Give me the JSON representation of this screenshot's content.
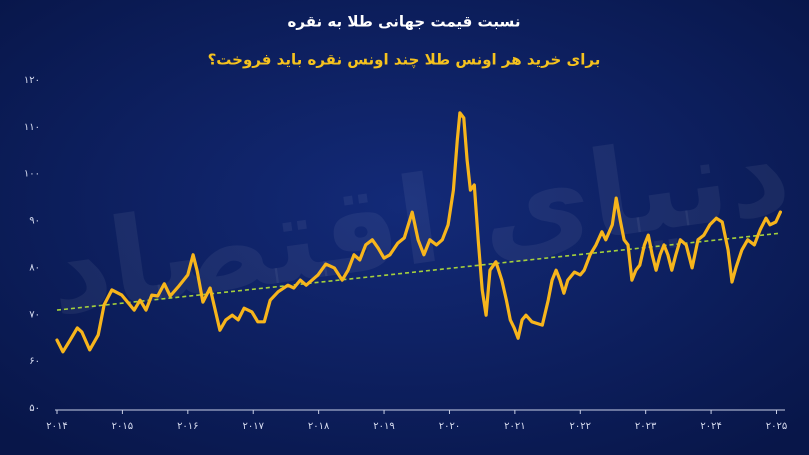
{
  "chart_data": {
    "type": "line",
    "title": "نسبت قیمت جهانی طلا به نقره",
    "subtitle": "برای خرید هر اونس طلا چند اونس نقره باید فروخت؟",
    "watermark": "دنیای اقتصاد",
    "color": "#f7b51c",
    "x": [
      2014.0,
      2014.09,
      2014.2,
      2014.31,
      2014.38,
      2014.5,
      2014.63,
      2014.72,
      2014.84,
      2014.99,
      2015.18,
      2015.27,
      2015.36,
      2015.45,
      2015.54,
      2015.64,
      2015.73,
      2015.85,
      2016.0,
      2016.08,
      2016.14,
      2016.23,
      2016.34,
      2016.4,
      2016.49,
      2016.58,
      2016.68,
      2016.77,
      2016.86,
      2016.98,
      2017.07,
      2017.17,
      2017.26,
      2017.38,
      2017.53,
      2017.62,
      2017.72,
      2017.81,
      2017.9,
      2017.99,
      2018.11,
      2018.24,
      2018.36,
      2018.45,
      2018.54,
      2018.63,
      2018.72,
      2018.82,
      2018.91,
      2019.0,
      2019.09,
      2019.21,
      2019.31,
      2019.43,
      2019.52,
      2019.61,
      2019.7,
      2019.8,
      2019.89,
      2019.98,
      2020.06,
      2020.12,
      2020.16,
      2020.22,
      2020.27,
      2020.32,
      2020.38,
      2020.44,
      2020.5,
      2020.56,
      2020.62,
      2020.71,
      2020.8,
      2020.87,
      2020.93,
      2020.99,
      2021.05,
      2021.11,
      2021.17,
      2021.26,
      2021.42,
      2021.51,
      2021.57,
      2021.63,
      2021.69,
      2021.75,
      2021.81,
      2021.91,
      2022.0,
      2022.06,
      2022.15,
      2022.24,
      2022.33,
      2022.39,
      2022.49,
      2022.55,
      2022.61,
      2022.67,
      2022.73,
      2022.79,
      2022.85,
      2022.91,
      2022.98,
      2023.04,
      2023.1,
      2023.16,
      2023.22,
      2023.28,
      2023.34,
      2023.4,
      2023.46,
      2023.53,
      2023.62,
      2023.71,
      2023.8,
      2023.89,
      2023.98,
      2024.08,
      2024.17,
      2024.26,
      2024.32,
      2024.38,
      2024.47,
      2024.56,
      2024.66,
      2024.75,
      2024.84,
      2024.9,
      2024.99,
      2025.06
    ],
    "values": [
      64.5,
      62.0,
      64.5,
      67.1,
      66.2,
      62.4,
      65.6,
      72.0,
      75.2,
      74.1,
      70.9,
      73.0,
      70.9,
      74.1,
      73.9,
      76.5,
      73.9,
      75.8,
      78.4,
      82.7,
      79.4,
      72.6,
      75.6,
      72.0,
      66.6,
      68.8,
      69.8,
      68.8,
      71.3,
      70.5,
      68.4,
      68.4,
      73.0,
      74.8,
      76.2,
      75.6,
      77.3,
      76.2,
      77.3,
      78.4,
      80.7,
      79.9,
      77.3,
      79.4,
      82.7,
      81.6,
      84.8,
      85.9,
      84.1,
      82.0,
      82.7,
      85.2,
      86.3,
      91.8,
      85.9,
      82.7,
      85.9,
      84.8,
      85.9,
      89.1,
      96.5,
      107.2,
      113.0,
      111.9,
      102.9,
      96.5,
      97.6,
      85.9,
      75.2,
      69.8,
      79.4,
      81.2,
      77.3,
      73.0,
      68.8,
      67.1,
      64.9,
      68.8,
      69.8,
      68.4,
      67.7,
      73.0,
      77.3,
      79.4,
      77.3,
      74.5,
      77.3,
      79.0,
      78.4,
      79.4,
      82.7,
      84.8,
      87.6,
      85.9,
      89.1,
      94.8,
      90.1,
      85.9,
      84.8,
      77.3,
      79.4,
      80.5,
      84.8,
      86.9,
      82.7,
      79.4,
      82.7,
      84.8,
      82.7,
      79.4,
      82.7,
      85.9,
      84.8,
      79.9,
      85.9,
      86.9,
      89.1,
      90.5,
      89.7,
      83.7,
      76.9,
      79.9,
      83.7,
      85.9,
      84.8,
      88.0,
      90.5,
      89.1,
      89.7,
      91.8
    ],
    "trendline": {
      "color": "#a5d13c",
      "x": [
        2014.0,
        2025.06
      ],
      "values": [
        70.9,
        87.3
      ]
    },
    "xlim": [
      2014,
      2025.13
    ],
    "xticks": [
      {
        "value": 2014,
        "label": "۲۰۱۴"
      },
      {
        "value": 2015,
        "label": "۲۰۱۵"
      },
      {
        "value": 2016,
        "label": "۲۰۱۶"
      },
      {
        "value": 2017,
        "label": "۲۰۱۷"
      },
      {
        "value": 2018,
        "label": "۲۰۱۸"
      },
      {
        "value": 2019,
        "label": "۲۰۱۹"
      },
      {
        "value": 2020,
        "label": "۲۰۲۰"
      },
      {
        "value": 2021,
        "label": "۲۰۲۱"
      },
      {
        "value": 2022,
        "label": "۲۰۲۲"
      },
      {
        "value": 2023,
        "label": "۲۰۲۳"
      },
      {
        "value": 2024,
        "label": "۲۰۲۴"
      },
      {
        "value": 2025,
        "label": "۲۰۲۵"
      }
    ],
    "ylim": [
      50,
      120
    ],
    "yticks": [
      {
        "value": 50,
        "label": "۵۰"
      },
      {
        "value": 60,
        "label": "۶۰"
      },
      {
        "value": 70,
        "label": "۷۰"
      },
      {
        "value": 80,
        "label": "۸۰"
      },
      {
        "value": 90,
        "label": "۹۰"
      },
      {
        "value": 100,
        "label": "۱۰۰"
      },
      {
        "value": 110,
        "label": "۱۱۰"
      },
      {
        "value": 120,
        "label": "۱۲۰"
      }
    ],
    "grid": false
  }
}
